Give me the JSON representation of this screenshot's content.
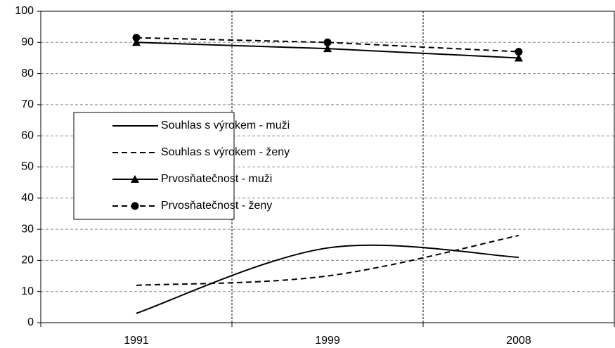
{
  "chart_data": {
    "type": "line",
    "categories": [
      "1991",
      "1999",
      "2008"
    ],
    "series": [
      {
        "name": "Souhlas s výrokem - muži",
        "color": "#000000",
        "dash": false,
        "marker": null,
        "smooth": true,
        "values": [
          3,
          24,
          21
        ]
      },
      {
        "name": "Souhlas s výrokem - ženy",
        "color": "#000000",
        "dash": true,
        "marker": null,
        "smooth": true,
        "values": [
          12,
          15,
          28
        ]
      },
      {
        "name": "Prvosňatečnost - muži",
        "color": "#000000",
        "dash": false,
        "marker": "triangle",
        "smooth": false,
        "values": [
          90,
          88,
          85
        ]
      },
      {
        "name": "Prvosňatečnost - ženy",
        "color": "#000000",
        "dash": true,
        "marker": "circle",
        "smooth": false,
        "values": [
          91.5,
          90,
          87
        ]
      }
    ],
    "ylim": [
      0,
      100
    ],
    "yticks": [
      0,
      10,
      20,
      30,
      40,
      50,
      60,
      70,
      80,
      90,
      100
    ],
    "grid": true
  }
}
